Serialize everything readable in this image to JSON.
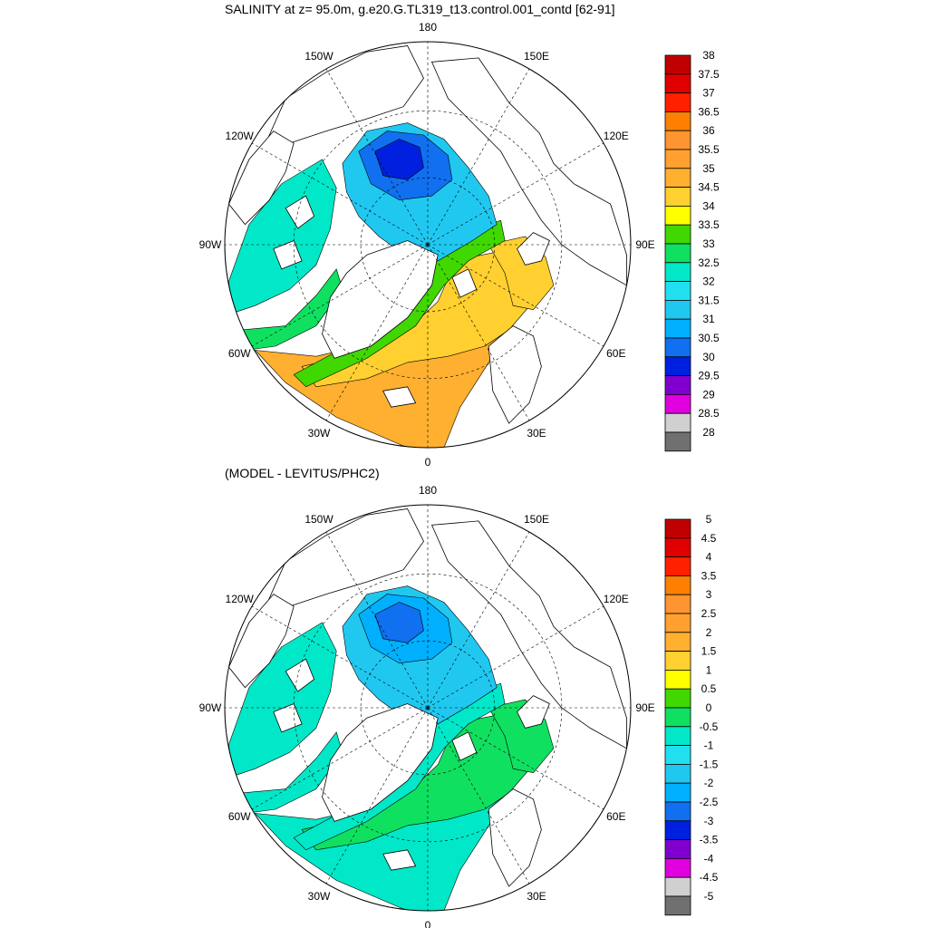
{
  "chart_data": [
    {
      "type": "heatmap",
      "projection": "north-polar-stereographic",
      "title": "SALINITY at z=  95.0m, g.e20.G.TL319_t13.control.001_contd [62-91]",
      "lon_labels": [
        "180",
        "150E",
        "120E",
        "90E",
        "60E",
        "30E",
        "0",
        "30W",
        "60W",
        "90W",
        "120W",
        "150W"
      ],
      "colorbar": {
        "levels": [
          "38",
          "37.5",
          "37",
          "36.5",
          "36",
          "35.5",
          "35",
          "34.5",
          "34",
          "33.5",
          "33",
          "32.5",
          "32",
          "31.5",
          "31",
          "30.5",
          "30",
          "29.5",
          "29",
          "28.5",
          "28"
        ],
        "colors": [
          "#c00000",
          "#e00000",
          "#ff2000",
          "#ff8000",
          "#ff9530",
          "#ffa030",
          "#ffb030",
          "#ffd030",
          "#ffff00",
          "#40d800",
          "#10e060",
          "#00e8c8",
          "#20e0f0",
          "#20c8f0",
          "#00b0ff",
          "#1070f0",
          "#0020e0",
          "#8000d0",
          "#e000e0",
          "#d0d0d0",
          "#707070"
        ]
      },
      "regions": {
        "central_arctic": "#20c8f0",
        "canada_basin_core": "#1070f0",
        "canada_basin_min": "#0020e0",
        "canadian_archipelago": "#00e8c8",
        "baffin_boundary": "#10e060",
        "eurasian_shelf_edge": "#40d800",
        "atlantic_inflow": "#ffd030",
        "barents_sea": "#ffd030",
        "deep_atlantic": "#ffb030"
      }
    },
    {
      "type": "heatmap",
      "projection": "north-polar-stereographic",
      "title": "(MODEL - LEVITUS/PHC2)",
      "lon_labels": [
        "180",
        "150E",
        "120E",
        "90E",
        "60E",
        "30E",
        "0",
        "30W",
        "60W",
        "90W",
        "120W",
        "150W"
      ],
      "colorbar": {
        "levels": [
          "5",
          "4.5",
          "4",
          "3.5",
          "3",
          "2.5",
          "2",
          "1.5",
          "1",
          "0.5",
          "0",
          "-0.5",
          "-1",
          "-1.5",
          "-2",
          "-2.5",
          "-3",
          "-3.5",
          "-4",
          "-4.5",
          "-5"
        ],
        "colors": [
          "#c00000",
          "#e00000",
          "#ff2000",
          "#ff8000",
          "#ff9530",
          "#ffa030",
          "#ffb030",
          "#ffd030",
          "#ffff00",
          "#40d800",
          "#10e060",
          "#00e8c8",
          "#20e0f0",
          "#20c8f0",
          "#00b0ff",
          "#1070f0",
          "#0020e0",
          "#8000d0",
          "#e000e0",
          "#d0d0d0",
          "#707070"
        ]
      },
      "regions": {
        "central_arctic": "#20c8f0",
        "canada_basin_core": "#00b0ff",
        "canada_basin_min": "#1070f0",
        "canadian_archipelago": "#00e8c8",
        "baffin_boundary": "#00e8c8",
        "eurasian_shelf_edge": "#00e8c8",
        "atlantic_inflow": "#10e060",
        "barents_sea": "#10e060",
        "deep_atlantic": "#00e8c8"
      }
    }
  ]
}
